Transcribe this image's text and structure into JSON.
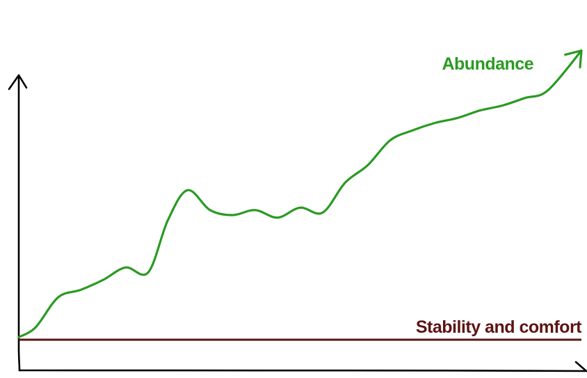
{
  "chart_data": {
    "type": "line",
    "title": "",
    "xlabel": "",
    "ylabel": "",
    "grid": false,
    "legend": "none",
    "x_range": [
      0,
      100
    ],
    "y_range": [
      0,
      100
    ],
    "series": [
      {
        "name": "Abundance",
        "color": "#2a9a22",
        "x": [
          0,
          3,
          7,
          11,
          15,
          19,
          23,
          26.5,
          30,
          34,
          38,
          42,
          46,
          50,
          54,
          58,
          62,
          66,
          70,
          74,
          78,
          82,
          86,
          90,
          94,
          100
        ],
        "y": [
          1,
          5,
          17,
          20,
          24,
          29,
          27,
          48,
          60,
          52,
          50,
          52,
          49,
          53,
          51,
          63,
          70,
          80,
          84,
          87,
          89,
          92,
          94,
          97,
          100,
          116
        ],
        "end_marker": "arrow"
      },
      {
        "name": "Stability and comfort",
        "color": "#5c1414",
        "x": [
          0,
          100
        ],
        "y": [
          0,
          0
        ]
      }
    ],
    "labels": {
      "abundance": "Abundance",
      "stability": "Stability and comfort"
    }
  }
}
